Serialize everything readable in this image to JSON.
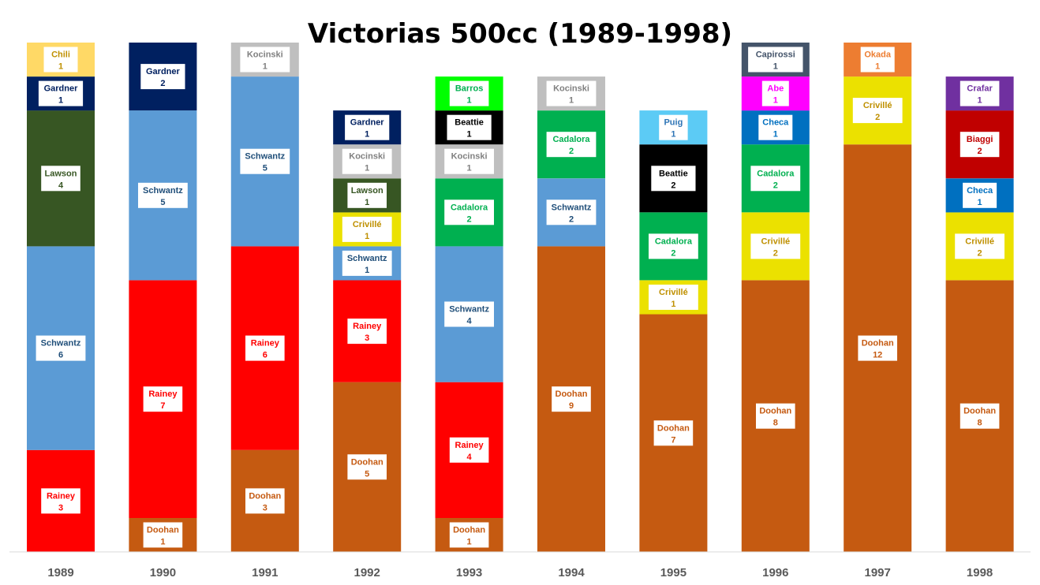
{
  "chart_data": {
    "type": "stacked-bar",
    "title": "Victorias 500cc (1989-1998)",
    "xlabel": "",
    "ylabel": "",
    "ylim": [
      0,
      15
    ],
    "grid": false,
    "legend": "none",
    "categories": [
      "1989",
      "1990",
      "1991",
      "1992",
      "1993",
      "1994",
      "1995",
      "1996",
      "1997",
      "1998"
    ],
    "colors": {
      "Doohan": "#c55a11",
      "Rainey": "#ff0000",
      "Schwantz": "#5b9bd5",
      "Lawson": "#375623",
      "Gardner": "#002060",
      "Chili": "#ffd966",
      "Kocinski": "#bfbfbf",
      "Crivillé": "#ebe100",
      "Cadalora": "#00b050",
      "Beattie": "#000000",
      "Barros": "#00ff00",
      "Puig": "#5ccbf5",
      "Checa": "#0070c0",
      "Abe": "#ff00ff",
      "Capirossi": "#44546a",
      "Okada": "#ed7d31",
      "Biaggi": "#c00000",
      "Crafar": "#7030a0"
    },
    "label_colors": {
      "Doohan": "#c55a11",
      "Rainey": "#ff0000",
      "Schwantz": "#1f4e79",
      "Lawson": "#375623",
      "Gardner": "#002060",
      "Chili": "#bf9000",
      "Kocinski": "#808080",
      "Crivillé": "#bf9000",
      "Cadalora": "#00b050",
      "Beattie": "#000000",
      "Barros": "#00b050",
      "Puig": "#2e75b6",
      "Checa": "#0070c0",
      "Abe": "#ff00ff",
      "Capirossi": "#44546a",
      "Okada": "#ed7d31",
      "Biaggi": "#c00000",
      "Crafar": "#7030a0"
    },
    "bars": [
      {
        "year": "1989",
        "segments": [
          {
            "rider": "Rainey",
            "wins": 3
          },
          {
            "rider": "Schwantz",
            "wins": 6
          },
          {
            "rider": "Lawson",
            "wins": 4
          },
          {
            "rider": "Gardner",
            "wins": 1
          },
          {
            "rider": "Chili",
            "wins": 1
          }
        ]
      },
      {
        "year": "1990",
        "segments": [
          {
            "rider": "Doohan",
            "wins": 1
          },
          {
            "rider": "Rainey",
            "wins": 7
          },
          {
            "rider": "Schwantz",
            "wins": 5
          },
          {
            "rider": "Gardner",
            "wins": 2
          }
        ]
      },
      {
        "year": "1991",
        "segments": [
          {
            "rider": "Doohan",
            "wins": 3
          },
          {
            "rider": "Rainey",
            "wins": 6
          },
          {
            "rider": "Schwantz",
            "wins": 5
          },
          {
            "rider": "Kocinski",
            "wins": 1
          }
        ]
      },
      {
        "year": "1992",
        "segments": [
          {
            "rider": "Doohan",
            "wins": 5
          },
          {
            "rider": "Rainey",
            "wins": 3
          },
          {
            "rider": "Schwantz",
            "wins": 1
          },
          {
            "rider": "Crivillé",
            "wins": 1
          },
          {
            "rider": "Lawson",
            "wins": 1
          },
          {
            "rider": "Kocinski",
            "wins": 1
          },
          {
            "rider": "Gardner",
            "wins": 1
          }
        ]
      },
      {
        "year": "1993",
        "segments": [
          {
            "rider": "Doohan",
            "wins": 1
          },
          {
            "rider": "Rainey",
            "wins": 4
          },
          {
            "rider": "Schwantz",
            "wins": 4
          },
          {
            "rider": "Cadalora",
            "wins": 2
          },
          {
            "rider": "Kocinski",
            "wins": 1
          },
          {
            "rider": "Beattie",
            "wins": 1
          },
          {
            "rider": "Barros",
            "wins": 1
          }
        ]
      },
      {
        "year": "1994",
        "segments": [
          {
            "rider": "Doohan",
            "wins": 9
          },
          {
            "rider": "Schwantz",
            "wins": 2
          },
          {
            "rider": "Cadalora",
            "wins": 2
          },
          {
            "rider": "Kocinski",
            "wins": 1
          }
        ]
      },
      {
        "year": "1995",
        "segments": [
          {
            "rider": "Doohan",
            "wins": 7
          },
          {
            "rider": "Crivillé",
            "wins": 1
          },
          {
            "rider": "Cadalora",
            "wins": 2
          },
          {
            "rider": "Beattie",
            "wins": 2
          },
          {
            "rider": "Puig",
            "wins": 1
          }
        ]
      },
      {
        "year": "1996",
        "segments": [
          {
            "rider": "Doohan",
            "wins": 8
          },
          {
            "rider": "Crivillé",
            "wins": 2
          },
          {
            "rider": "Cadalora",
            "wins": 2
          },
          {
            "rider": "Checa",
            "wins": 1
          },
          {
            "rider": "Abe",
            "wins": 1
          },
          {
            "rider": "Capirossi",
            "wins": 1
          }
        ]
      },
      {
        "year": "1997",
        "segments": [
          {
            "rider": "Doohan",
            "wins": 12
          },
          {
            "rider": "Crivillé",
            "wins": 2
          },
          {
            "rider": "Okada",
            "wins": 1
          }
        ]
      },
      {
        "year": "1998",
        "segments": [
          {
            "rider": "Doohan",
            "wins": 8
          },
          {
            "rider": "Crivillé",
            "wins": 2
          },
          {
            "rider": "Checa",
            "wins": 1
          },
          {
            "rider": "Biaggi",
            "wins": 2
          },
          {
            "rider": "Crafar",
            "wins": 1
          }
        ]
      }
    ]
  }
}
